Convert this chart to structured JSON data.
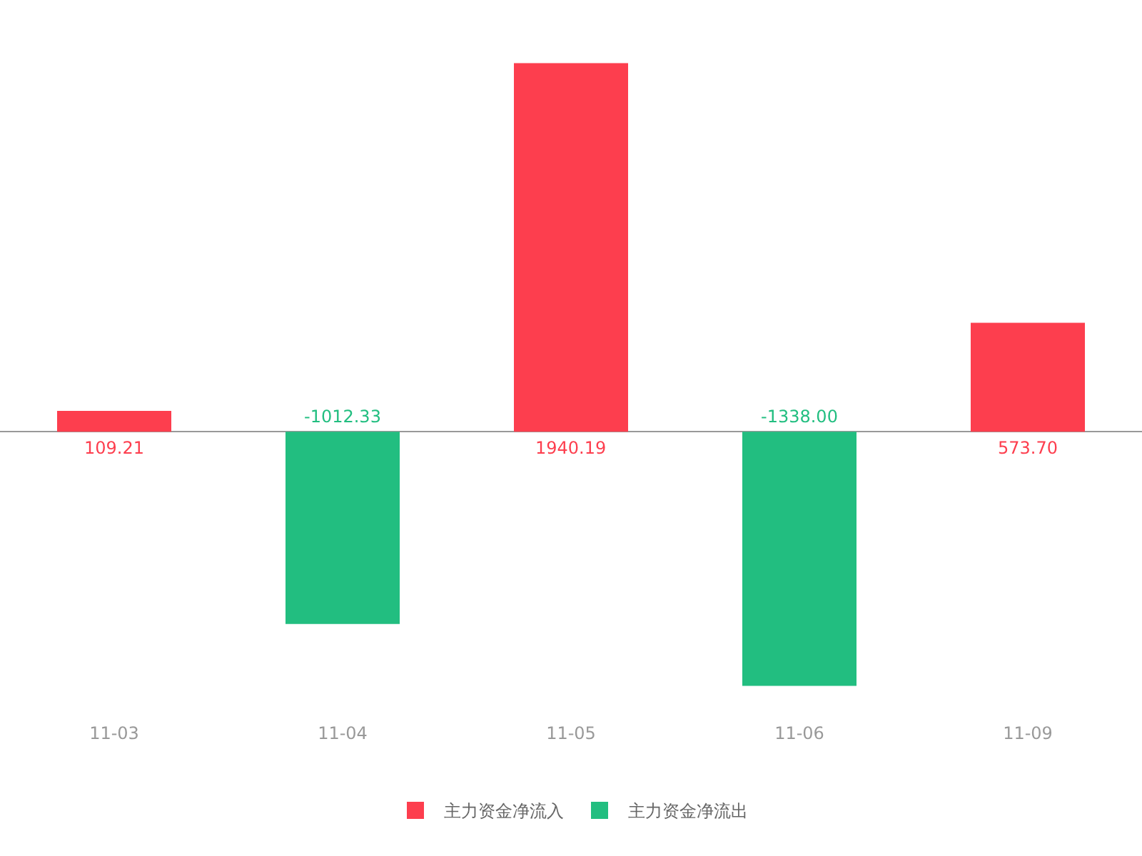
{
  "chart_data": {
    "type": "bar",
    "categories": [
      "11-03",
      "11-04",
      "11-05",
      "11-06",
      "11-09"
    ],
    "series": [
      {
        "name": "主力资金净流入",
        "color": "#fd3e4e",
        "values": [
          109.21,
          null,
          1940.19,
          null,
          573.7
        ],
        "value_labels": [
          "109.21",
          null,
          "1940.19",
          null,
          "573.70"
        ]
      },
      {
        "name": "主力资金净流出",
        "color": "#22be80",
        "values": [
          null,
          -1012.33,
          null,
          -1338.0,
          null
        ],
        "value_labels": [
          null,
          "-1012.33",
          null,
          "-1338.00",
          null
        ]
      }
    ],
    "legend": "bottom",
    "grid": false
  }
}
